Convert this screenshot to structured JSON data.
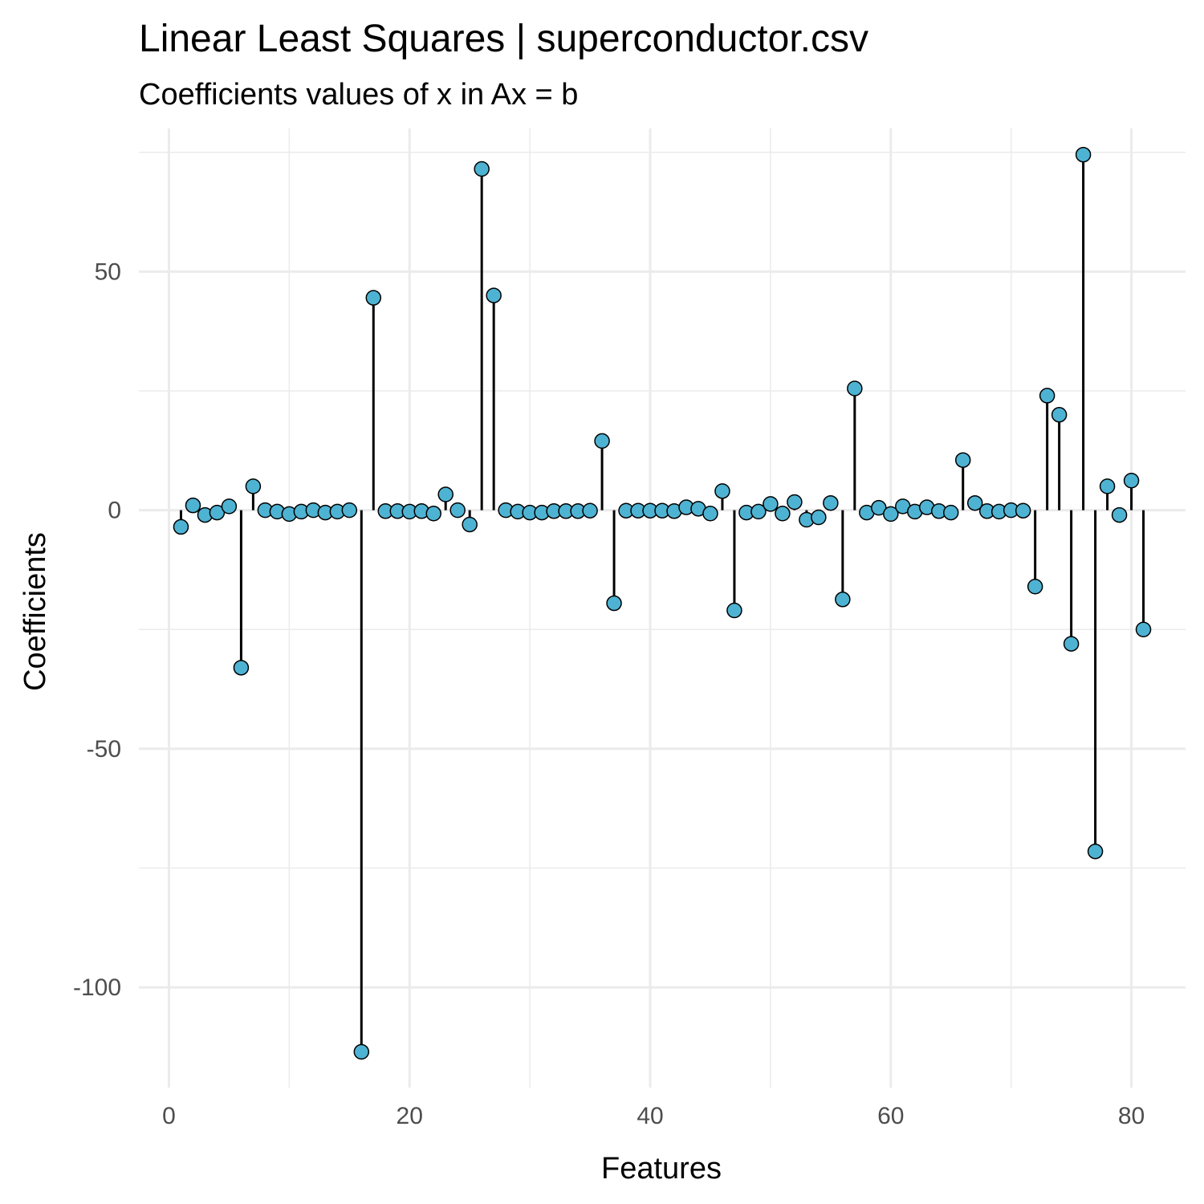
{
  "chart_data": {
    "type": "scatter",
    "style": "lollipop",
    "title": "Linear Least Squares | superconductor.csv",
    "subtitle": "Coefficients values of x in Ax = b",
    "xlabel": "Features",
    "ylabel": "Coefficients",
    "xlim": [
      -2.5,
      84.5
    ],
    "ylim": [
      -121,
      80
    ],
    "x_ticks": [
      0,
      20,
      40,
      60,
      80
    ],
    "x_tick_labels": [
      "0",
      "20",
      "40",
      "60",
      "80"
    ],
    "y_ticks": [
      -100,
      -50,
      0,
      50
    ],
    "y_tick_labels": [
      "-100",
      "-50",
      "0",
      "50"
    ],
    "grid": true,
    "point_color": "#4eb3d3",
    "stem_color": "#000000",
    "x": [
      1,
      2,
      3,
      4,
      5,
      6,
      7,
      8,
      9,
      10,
      11,
      12,
      13,
      14,
      15,
      16,
      17,
      18,
      19,
      20,
      21,
      22,
      23,
      24,
      25,
      26,
      27,
      28,
      29,
      30,
      31,
      32,
      33,
      34,
      35,
      36,
      37,
      38,
      39,
      40,
      41,
      42,
      43,
      44,
      45,
      46,
      47,
      48,
      49,
      50,
      51,
      52,
      53,
      54,
      55,
      56,
      57,
      58,
      59,
      60,
      61,
      62,
      63,
      64,
      65,
      66,
      67,
      68,
      69,
      70,
      71,
      72,
      73,
      74,
      75,
      76,
      77,
      78,
      79,
      80,
      81
    ],
    "values": [
      -3.5,
      1,
      -1,
      -0.5,
      0.8,
      -33,
      5,
      0,
      -0.3,
      -0.8,
      -0.3,
      0,
      -0.5,
      -0.3,
      0,
      -113.5,
      44.5,
      -0.2,
      -0.2,
      -0.3,
      -0.2,
      -0.7,
      3.3,
      0,
      -3,
      71.5,
      45,
      0,
      -0.3,
      -0.5,
      -0.5,
      -0.2,
      -0.2,
      -0.2,
      -0.1,
      14.5,
      -19.5,
      -0.1,
      -0.1,
      -0.1,
      -0.1,
      -0.2,
      0.6,
      0.3,
      -0.7,
      4,
      -21,
      -0.5,
      -0.3,
      1.3,
      -0.7,
      1.7,
      -2,
      -1.5,
      1.5,
      -18.7,
      25.5,
      -0.5,
      0.5,
      -0.8,
      0.8,
      -0.3,
      0.6,
      -0.2,
      -0.5,
      10.5,
      1.5,
      -0.2,
      -0.3,
      0,
      -0.1,
      -16,
      24,
      20,
      -28,
      74.5,
      -71.5,
      5,
      -1,
      6.2,
      -25
    ]
  }
}
